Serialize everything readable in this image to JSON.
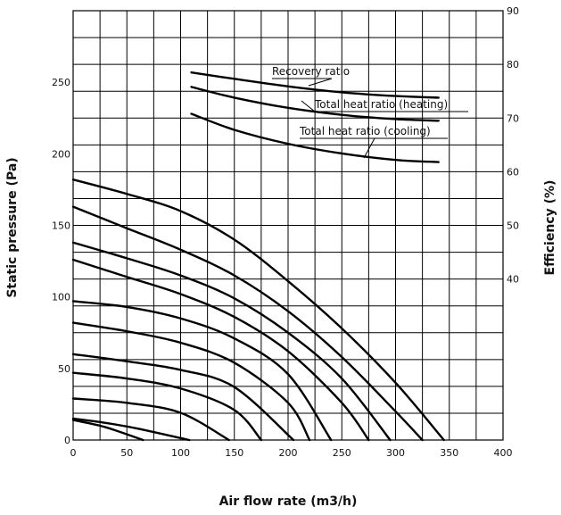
{
  "chart_data": {
    "type": "line",
    "title": "",
    "xlabel": "Air flow rate (m3/h)",
    "ylabel_left": "Static pressure (Pa)",
    "ylabel_right": "Efficiency (%)",
    "xlim": [
      0,
      400
    ],
    "ylim_left": [
      0,
      300
    ],
    "ylim_right": [
      10,
      90
    ],
    "grid": true,
    "legend": "none",
    "x_ticks": [
      "0",
      "50",
      "100",
      "150",
      "200",
      "250",
      "300",
      "350",
      "400"
    ],
    "y_left_ticks": [
      {
        "value": 0,
        "label": "0"
      },
      {
        "value": 50,
        "label": "50"
      },
      {
        "value": 100,
        "label": "100"
      },
      {
        "value": 150,
        "label": "150"
      },
      {
        "value": 200,
        "label": "200"
      },
      {
        "value": 250,
        "label": "250"
      }
    ],
    "y_right_ticks": [
      {
        "value": 40,
        "label": "40"
      },
      {
        "value": 50,
        "label": "50"
      },
      {
        "value": 60,
        "label": "60"
      },
      {
        "value": 70,
        "label": "70"
      },
      {
        "value": 80,
        "label": "80"
      },
      {
        "value": 90,
        "label": "90"
      }
    ],
    "efficiency_series": [
      {
        "name": "Recovery ratio",
        "x": [
          110,
          150,
          200,
          250,
          300,
          340
        ],
        "y": [
          78.5,
          77.3,
          75.9,
          74.8,
          74.1,
          73.8
        ]
      },
      {
        "name": "Total heat ratio (heating)",
        "x": [
          110,
          150,
          200,
          250,
          300,
          340
        ],
        "y": [
          75.8,
          73.8,
          71.9,
          70.6,
          69.8,
          69.5
        ]
      },
      {
        "name": "Total heat ratio (cooling)",
        "x": [
          110,
          150,
          200,
          250,
          300,
          340
        ],
        "y": [
          70.8,
          67.8,
          65.2,
          63.4,
          62.2,
          61.8
        ]
      }
    ],
    "fan_curves": [
      {
        "x": [
          0,
          50,
          100,
          150,
          200,
          250,
          300,
          345
        ],
        "y": [
          182,
          172,
          160,
          140,
          111,
          78,
          40,
          0
        ]
      },
      {
        "x": [
          0,
          50,
          100,
          150,
          200,
          250,
          300,
          325
        ],
        "y": [
          163,
          148,
          133,
          115,
          90,
          58,
          20,
          0
        ]
      },
      {
        "x": [
          0,
          50,
          100,
          150,
          200,
          250,
          295
        ],
        "y": [
          138,
          127,
          115,
          99,
          75,
          43,
          0
        ]
      },
      {
        "x": [
          0,
          50,
          100,
          150,
          200,
          250,
          275
        ],
        "y": [
          126,
          114,
          102,
          86,
          62,
          26,
          0
        ]
      },
      {
        "x": [
          0,
          50,
          100,
          150,
          200,
          240
        ],
        "y": [
          97,
          93,
          85,
          71,
          46,
          0
        ]
      },
      {
        "x": [
          0,
          50,
          100,
          150,
          200,
          220
        ],
        "y": [
          82,
          76,
          68,
          54,
          26,
          0
        ]
      },
      {
        "x": [
          0,
          50,
          100,
          150,
          205
        ],
        "y": [
          60,
          55,
          49,
          37,
          0
        ]
      },
      {
        "x": [
          0,
          50,
          100,
          150,
          175
        ],
        "y": [
          47,
          43,
          36,
          21,
          0
        ]
      },
      {
        "x": [
          0,
          50,
          100,
          145
        ],
        "y": [
          29,
          26,
          19,
          0
        ]
      },
      {
        "x": [
          0,
          30,
          60,
          108
        ],
        "y": [
          15,
          12,
          8,
          0
        ]
      },
      {
        "x": [
          0,
          30,
          65
        ],
        "y": [
          14,
          9,
          0
        ]
      }
    ]
  }
}
